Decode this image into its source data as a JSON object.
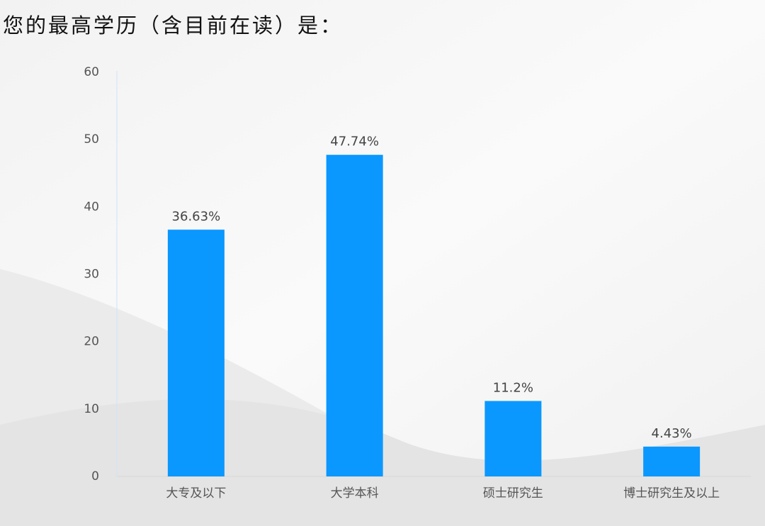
{
  "chart_data": {
    "type": "bar",
    "title": "您的最高学历（含目前在读）是：",
    "categories": [
      "大专及以下",
      "大学本科",
      "硕士研究生",
      "博士研究生及以上"
    ],
    "values": [
      36.63,
      47.74,
      11.2,
      4.43
    ],
    "value_labels": [
      "36.63%",
      "47.74%",
      "11.2%",
      "4.43%"
    ],
    "color": "#0a98ff",
    "ylim": [
      0,
      60
    ],
    "yticks": [
      0,
      10,
      20,
      30,
      40,
      50,
      60
    ],
    "grid": false
  }
}
